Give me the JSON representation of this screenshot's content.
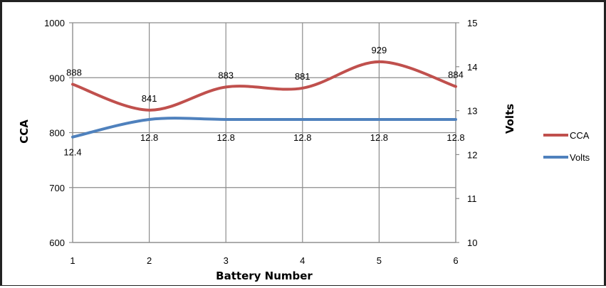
{
  "chart_data": {
    "type": "line",
    "x": [
      1,
      2,
      3,
      4,
      5,
      6
    ],
    "xlabel": "Battery Number",
    "ylabel": "CCA",
    "y2label": "Volts",
    "ylim": [
      600,
      1000
    ],
    "y2lim": [
      10,
      15
    ],
    "yticks": [
      600,
      700,
      800,
      900,
      1000
    ],
    "y2ticks": [
      10,
      11,
      12,
      13,
      14,
      15
    ],
    "grid": true,
    "legend": "right",
    "series": [
      {
        "name": "CCA",
        "axis": "left",
        "color": "#c0504d",
        "values": [
          888,
          841,
          883,
          881,
          929,
          884
        ],
        "labels": [
          "888",
          "841",
          "883",
          "881",
          "929",
          "884"
        ]
      },
      {
        "name": "Volts",
        "axis": "right",
        "color": "#4f81bd",
        "values": [
          12.4,
          12.8,
          12.8,
          12.8,
          12.8,
          12.8
        ],
        "labels": [
          "12.4",
          "12.8",
          "12.8",
          "12.8",
          "12.8",
          "12.8"
        ]
      }
    ]
  }
}
